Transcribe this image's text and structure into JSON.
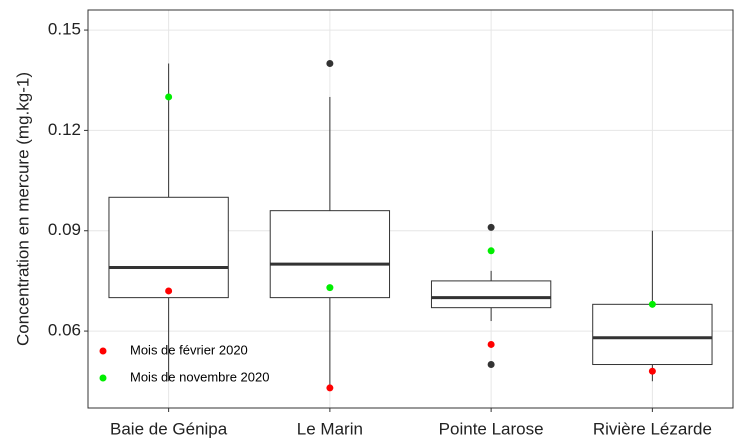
{
  "chart_data": {
    "type": "box",
    "y_label": "Concentration en mercure (mg.kg-1)",
    "categories": [
      "Baie de Génipa",
      "Le Marin",
      "Pointe Larose",
      "Rivière Lézarde"
    ],
    "whisker_low": [
      0.045,
      0.043,
      0.063,
      0.045
    ],
    "q1": [
      0.07,
      0.07,
      0.067,
      0.05
    ],
    "median": [
      0.079,
      0.08,
      0.07,
      0.058
    ],
    "q3": [
      0.1,
      0.096,
      0.075,
      0.068
    ],
    "whisker_high": [
      0.14,
      0.13,
      0.078,
      0.09
    ],
    "outliers": [
      [],
      [
        0.14
      ],
      [
        0.091,
        0.05
      ],
      []
    ],
    "box_color": "#333333",
    "series": [
      {
        "name": "Mois de février 2020",
        "color": "#ff0000",
        "values": [
          0.072,
          0.043,
          0.056,
          0.048
        ]
      },
      {
        "name": "Mois de novembre 2020",
        "color": "#00ee00",
        "values": [
          0.13,
          0.073,
          0.084,
          0.068
        ]
      }
    ],
    "ylim": [
      0.037,
      0.156
    ],
    "yticks": [
      0.06,
      0.09,
      0.12,
      0.15
    ],
    "grid": true,
    "legend": "bottom-left"
  }
}
